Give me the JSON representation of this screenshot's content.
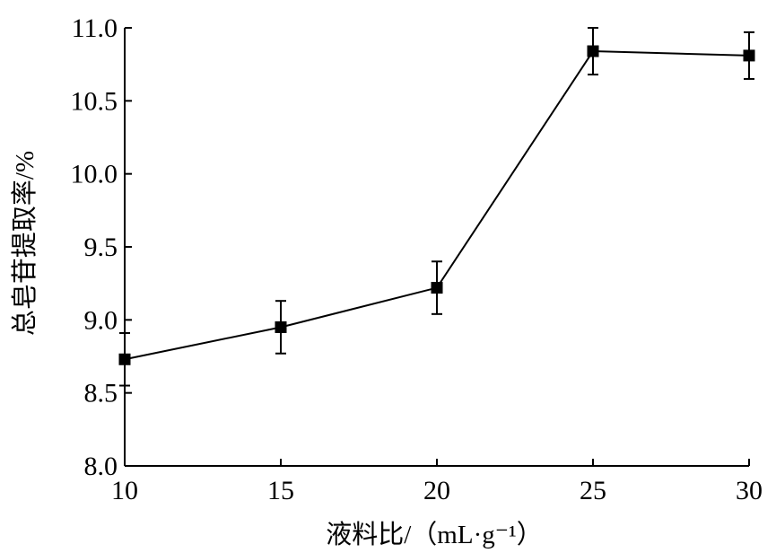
{
  "chart_data": {
    "type": "line",
    "title": "",
    "xlabel": "液料比/（mL·g⁻¹）",
    "ylabel": "总皂苷提取率/%",
    "x": [
      10,
      15,
      20,
      25,
      30
    ],
    "series": [
      {
        "values": [
          8.73,
          8.95,
          9.22,
          10.84,
          10.81
        ],
        "errors": [
          0.18,
          0.18,
          0.18,
          0.16,
          0.16
        ]
      }
    ],
    "xlim": [
      10,
      30
    ],
    "ylim": [
      8.0,
      11.0
    ],
    "xticks": [
      10,
      15,
      20,
      25,
      30
    ],
    "xtick_labels": [
      "10",
      "15",
      "20",
      "25",
      "30"
    ],
    "yticks": [
      8.0,
      8.5,
      9.0,
      9.5,
      10.0,
      10.5,
      11.0
    ],
    "ytick_labels": [
      "8.0",
      "8.5",
      "9.0",
      "9.5",
      "10.0",
      "10.5",
      "11.0"
    ],
    "grid": false,
    "legend": "none",
    "colors": {
      "line": "#000000",
      "marker": "#000000",
      "axis": "#000000"
    }
  }
}
